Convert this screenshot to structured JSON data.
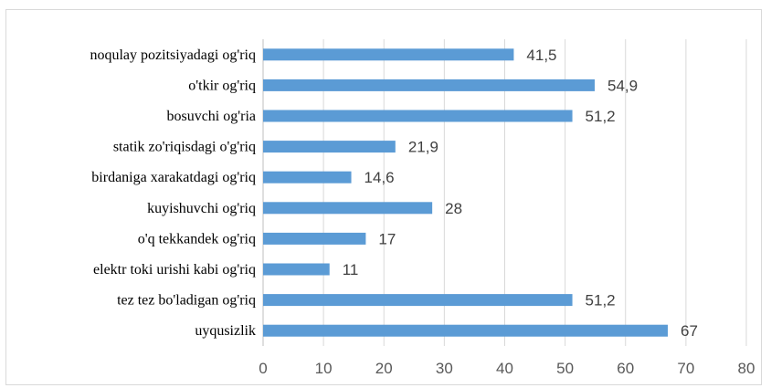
{
  "chart_data": {
    "type": "bar",
    "orientation": "horizontal",
    "title": "",
    "xlabel": "",
    "ylabel": "",
    "xlim": [
      0,
      80
    ],
    "x_ticks": [
      "0",
      "10",
      "20",
      "30",
      "40",
      "50",
      "60",
      "70",
      "80"
    ],
    "grid": "vertical",
    "legend": "none",
    "bar_color": "#5b9bd5",
    "categories": [
      "noqulay pozitsiyadagi og'riq",
      "o'tkir og'riq",
      "bosuvchi og'ria",
      "statik zo'riqisdagi o'g'riq",
      "birdaniga xarakatdagi og'riq",
      "kuyishuvchi og'riq",
      "o'q tekkandek og'riq",
      "elektr toki urishi kabi og'riq",
      "tez tez bo'ladigan og'riq",
      "uyqusizlik"
    ],
    "values": [
      41.5,
      54.9,
      51.2,
      21.9,
      14.6,
      28,
      17,
      11,
      51.2,
      67
    ],
    "value_labels": [
      "41,5",
      "54,9",
      "51,2",
      "21,9",
      "14,6",
      "28",
      "17",
      "11",
      "51,2",
      "67"
    ]
  }
}
